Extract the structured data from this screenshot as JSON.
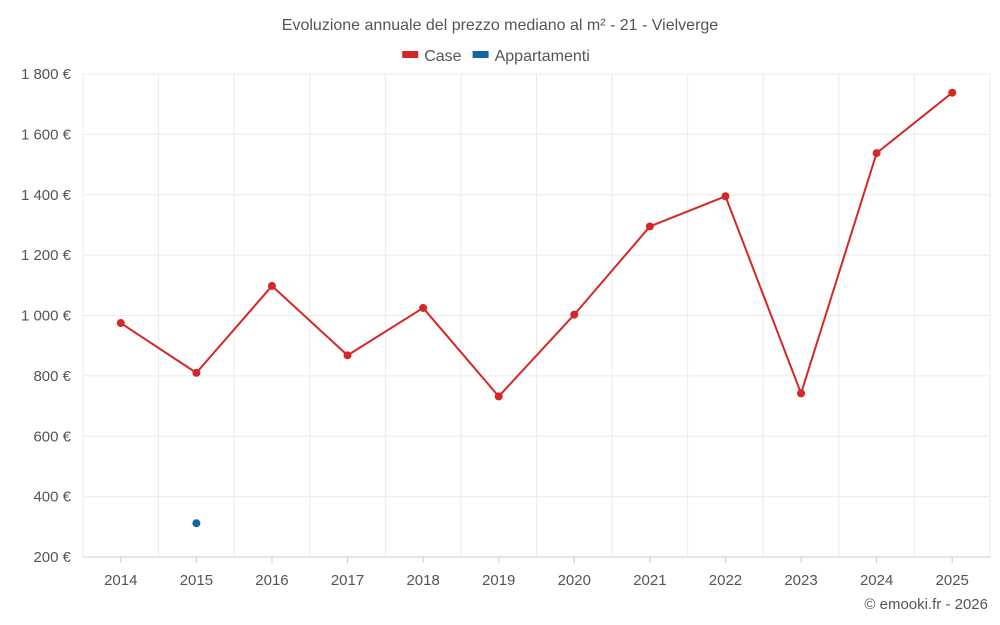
{
  "chart_data": {
    "type": "line",
    "title": "Evoluzione annuale del prezzo mediano al m² - 21 - Vielverge",
    "categories": [
      "2014",
      "2015",
      "2016",
      "2017",
      "2018",
      "2019",
      "2020",
      "2021",
      "2022",
      "2023",
      "2024",
      "2025"
    ],
    "series": [
      {
        "name": "Case",
        "color": "#d62728",
        "values": [
          975,
          810,
          1098,
          868,
          1025,
          732,
          1003,
          1295,
          1395,
          742,
          1538,
          1738
        ]
      },
      {
        "name": "Appartamenti",
        "color": "#1565a0",
        "values": [
          null,
          312,
          null,
          null,
          null,
          null,
          null,
          null,
          null,
          null,
          null,
          null
        ]
      }
    ],
    "ylim": [
      200,
      1800
    ],
    "yticks": [
      200,
      400,
      600,
      800,
      1000,
      1200,
      1400,
      1600,
      1800
    ],
    "ytick_labels": [
      "200 €",
      "400 €",
      "600 €",
      "800 €",
      "1 000 €",
      "1 200 €",
      "1 400 €",
      "1 600 €",
      "1 800 €"
    ],
    "xlabel": "",
    "ylabel": "",
    "grid": true,
    "legend_position": "top-center",
    "credit": "© emooki.fr - 2026"
  }
}
